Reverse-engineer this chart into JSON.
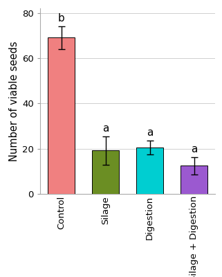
{
  "categories": [
    "Control",
    "Silage",
    "Digestion",
    "Silage + Digestion"
  ],
  "values": [
    69.0,
    19.2,
    20.5,
    12.5
  ],
  "errors": [
    5.0,
    6.2,
    3.0,
    3.8
  ],
  "bar_colors": [
    "#F08080",
    "#6B8E23",
    "#00CED1",
    "#9B59D0"
  ],
  "letters": [
    "b",
    "a",
    "a",
    "a"
  ],
  "ylabel": "Number of viable seeds",
  "ylim": [
    0,
    82
  ],
  "yticks": [
    0,
    20,
    40,
    60,
    80
  ],
  "bar_width": 0.6,
  "grid_color": "#d0d0d0",
  "background_color": "#ffffff",
  "tick_label_fontsize": 9.5,
  "ylabel_fontsize": 10.5,
  "letter_fontsize": 11
}
